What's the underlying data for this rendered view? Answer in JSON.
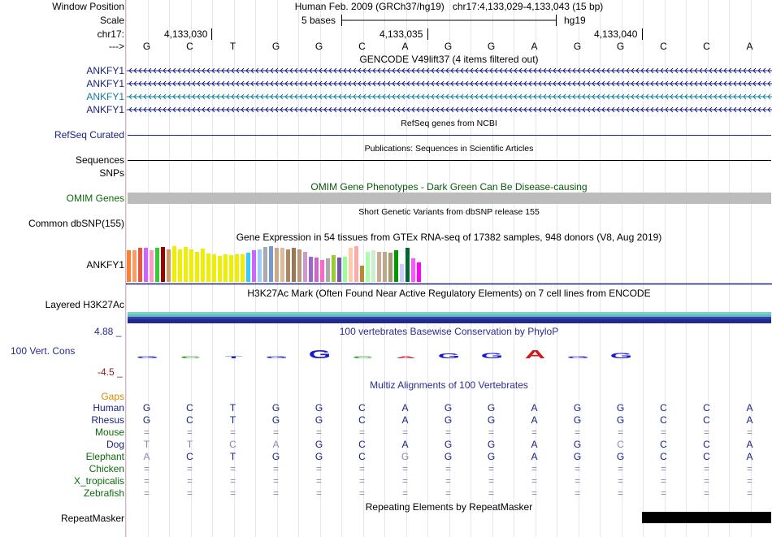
{
  "header": {
    "assembly": "Human Feb. 2009 (GRCh37/hg19)",
    "position": "chr17:4,133,029-4,133,043 (15 bp)",
    "scale_text": "5 bases",
    "db": "hg19",
    "positions": [
      "4,133,030",
      "4,133,035",
      "4,133,040"
    ]
  },
  "labels": {
    "window_position": "Window Position",
    "scale": "Scale",
    "chrom": "chr17:",
    "strand": "--->"
  },
  "sequence": [
    "G",
    "C",
    "T",
    "G",
    "G",
    "C",
    "A",
    "G",
    "G",
    "A",
    "G",
    "G",
    "C",
    "C",
    "A"
  ],
  "gencode": {
    "title": "GENCODE V49lift37 (4 items filtered out)",
    "genes": [
      "ANKFY1",
      "ANKFY1",
      "ANKFY1",
      "ANKFY1"
    ],
    "colors": [
      "#1a237e",
      "#1a237e",
      "#1679a0",
      "#1a237e"
    ]
  },
  "refseq": {
    "title": "RefSeq genes from NCBI",
    "label": "RefSeq Curated"
  },
  "publications": {
    "title": "Publications: Sequences in Scientific Articles",
    "label": "Sequences"
  },
  "snps_label": "SNPs",
  "omim": {
    "title": "OMIM Gene Phenotypes - Dark Green Can Be Disease-causing",
    "label": "OMIM Genes"
  },
  "dbsnp": {
    "title": "Short Genetic Variants from dbSNP release 155",
    "label": "Common dbSNP(155)"
  },
  "gtex": {
    "title": "Gene Expression in 54 tissues from GTEx RNA-seq of 17382 samples, 948 donors (V8, Aug 2019)",
    "label": "ANKFY1",
    "bars": [
      {
        "v": 0.88,
        "c": "#ff7f32"
      },
      {
        "v": 0.88,
        "c": "#ff9966"
      },
      {
        "v": 0.95,
        "c": "#e8573a"
      },
      {
        "v": 0.95,
        "c": "#cc66ff"
      },
      {
        "v": 0.88,
        "c": "#ff99cc"
      },
      {
        "v": 0.95,
        "c": "#33cc33"
      },
      {
        "v": 0.98,
        "c": "#990000"
      },
      {
        "v": 0.9,
        "c": "#cc9966"
      },
      {
        "v": 1.0,
        "c": "#eeee00"
      },
      {
        "v": 0.92,
        "c": "#eeee00"
      },
      {
        "v": 0.98,
        "c": "#eeee00"
      },
      {
        "v": 0.9,
        "c": "#eeee00"
      },
      {
        "v": 0.85,
        "c": "#eeee00"
      },
      {
        "v": 0.93,
        "c": "#eeee00"
      },
      {
        "v": 0.8,
        "c": "#eeee00"
      },
      {
        "v": 0.78,
        "c": "#eeee00"
      },
      {
        "v": 0.72,
        "c": "#eeee00"
      },
      {
        "v": 0.78,
        "c": "#eeee00"
      },
      {
        "v": 0.75,
        "c": "#eeee00"
      },
      {
        "v": 0.78,
        "c": "#eeee00"
      },
      {
        "v": 0.78,
        "c": "#eeee00"
      },
      {
        "v": 0.82,
        "c": "#33ccff"
      },
      {
        "v": 0.88,
        "c": "#cc66ff"
      },
      {
        "v": 0.92,
        "c": "#99ccff"
      },
      {
        "v": 0.98,
        "c": "#aaaaaa"
      },
      {
        "v": 1.0,
        "c": "#7799cc"
      },
      {
        "v": 0.95,
        "c": "#ccaa88"
      },
      {
        "v": 0.95,
        "c": "#ddbb99"
      },
      {
        "v": 0.92,
        "c": "#aa8866"
      },
      {
        "v": 0.95,
        "c": "#997755"
      },
      {
        "v": 0.9,
        "c": "#bb9977"
      },
      {
        "v": 0.85,
        "c": "#cc99cc"
      },
      {
        "v": 0.7,
        "c": "#9966cc"
      },
      {
        "v": 0.68,
        "c": "#cc66cc"
      },
      {
        "v": 0.62,
        "c": "#ff66cc"
      },
      {
        "v": 0.66,
        "c": "#aaaaaa"
      },
      {
        "v": 0.75,
        "c": "#99cc33"
      },
      {
        "v": 0.68,
        "c": "#7755aa"
      },
      {
        "v": 0.7,
        "c": "#99ff99"
      },
      {
        "v": 0.95,
        "c": "#ffccaa"
      },
      {
        "v": 1.0,
        "c": "#ffaaaa"
      },
      {
        "v": 0.45,
        "c": "#bb8833"
      },
      {
        "v": 0.85,
        "c": "#aaffaa"
      },
      {
        "v": 0.88,
        "c": "#cceecc"
      },
      {
        "v": 0.85,
        "c": "#ccaa99"
      },
      {
        "v": 0.85,
        "c": "#bbaa88"
      },
      {
        "v": 0.82,
        "c": "#aa9977"
      },
      {
        "v": 0.88,
        "c": "#009900"
      },
      {
        "v": 0.5,
        "c": "#ccccff"
      },
      {
        "v": 0.95,
        "c": "#006633"
      },
      {
        "v": 0.65,
        "c": "#ff55ff"
      },
      {
        "v": 0.55,
        "c": "#ff00ff"
      }
    ]
  },
  "h3k27ac": {
    "title": "H3K27Ac Mark (Often Found Near Active Regulatory Elements) on 7 cell lines from ENCODE",
    "label": "Layered H3K27Ac",
    "colors": [
      "#7ad1c8",
      "#5fbfbf",
      "#3a3aa8",
      "#1e2a8c"
    ]
  },
  "conservation": {
    "title": "100 vertebrates Basewise Conservation by PhyloP",
    "label": "100 Vert. Cons",
    "max": "4.88 _",
    "min": "-4.5 _",
    "scores": [
      0.25,
      0.18,
      0.08,
      0.05,
      0.95,
      0.05,
      0.1,
      0.5,
      0.55,
      0.9,
      0.15,
      0.6,
      0,
      0,
      0
    ],
    "neg": [
      false,
      false,
      false,
      false,
      false,
      false,
      true,
      false,
      false,
      false,
      false,
      false,
      false,
      false,
      false
    ]
  },
  "multiz": {
    "title": "Multiz Alignments of 100 Vertebrates",
    "gaps_label": "Gaps",
    "species": [
      {
        "name": "Human",
        "color": "#1a237e",
        "seq": [
          "G",
          "C",
          "T",
          "G",
          "G",
          "C",
          "A",
          "G",
          "G",
          "A",
          "G",
          "G",
          "C",
          "C",
          "A"
        ]
      },
      {
        "name": "Rhesus",
        "color": "#1a237e",
        "seq": [
          "G",
          "C",
          "T",
          "G",
          "G",
          "C",
          "A",
          "G",
          "G",
          "A",
          "G",
          "G",
          "C",
          "C",
          "A"
        ]
      },
      {
        "name": "Mouse",
        "color": "#0a6b0a",
        "seq": [
          "=",
          "=",
          "=",
          "=",
          "=",
          "=",
          "=",
          "=",
          "=",
          "=",
          "=",
          "=",
          "=",
          "=",
          "="
        ]
      },
      {
        "name": "Dog",
        "color": "#1a237e",
        "seq": [
          "T",
          "T",
          "C",
          "A",
          "G",
          "C",
          "A",
          "G",
          "G",
          "A",
          "G",
          "C",
          "C",
          "C",
          "A"
        ]
      },
      {
        "name": "Elephant",
        "color": "#0a6b0a",
        "seq": [
          "A",
          "C",
          "T",
          "G",
          "G",
          "C",
          "G",
          "G",
          "G",
          "A",
          "G",
          "G",
          "C",
          "C",
          "A"
        ]
      },
      {
        "name": "Chicken",
        "color": "#0a6b0a",
        "seq": [
          "=",
          "=",
          "=",
          "=",
          "=",
          "=",
          "=",
          "=",
          "=",
          "=",
          "=",
          "=",
          "=",
          "=",
          "="
        ]
      },
      {
        "name": "X_tropicalis",
        "color": "#0a6b0a",
        "seq": [
          "=",
          "=",
          "=",
          "=",
          "=",
          "=",
          "=",
          "=",
          "=",
          "=",
          "=",
          "=",
          "=",
          "=",
          "="
        ]
      },
      {
        "name": "Zebrafish",
        "color": "#0a6b0a",
        "seq": [
          "=",
          "=",
          "=",
          "=",
          "=",
          "=",
          "=",
          "=",
          "=",
          "=",
          "=",
          "=",
          "=",
          "=",
          "="
        ]
      }
    ],
    "dog_faded": [
      true,
      true,
      true,
      true,
      false,
      false,
      false,
      false,
      false,
      false,
      false,
      true,
      false,
      false,
      false
    ],
    "elephant_faded": [
      true,
      false,
      false,
      false,
      false,
      false,
      true,
      false,
      false,
      false,
      false,
      false,
      false,
      false,
      false
    ]
  },
  "repeatmasker": {
    "title": "Repeating Elements by RepeatMasker",
    "label": "RepeatMasker"
  },
  "colors": {
    "navy": "#1a237e",
    "green": "#0a6b0a",
    "cons_blue": "#1a1ad0",
    "cons_red": "#d01a1a"
  }
}
